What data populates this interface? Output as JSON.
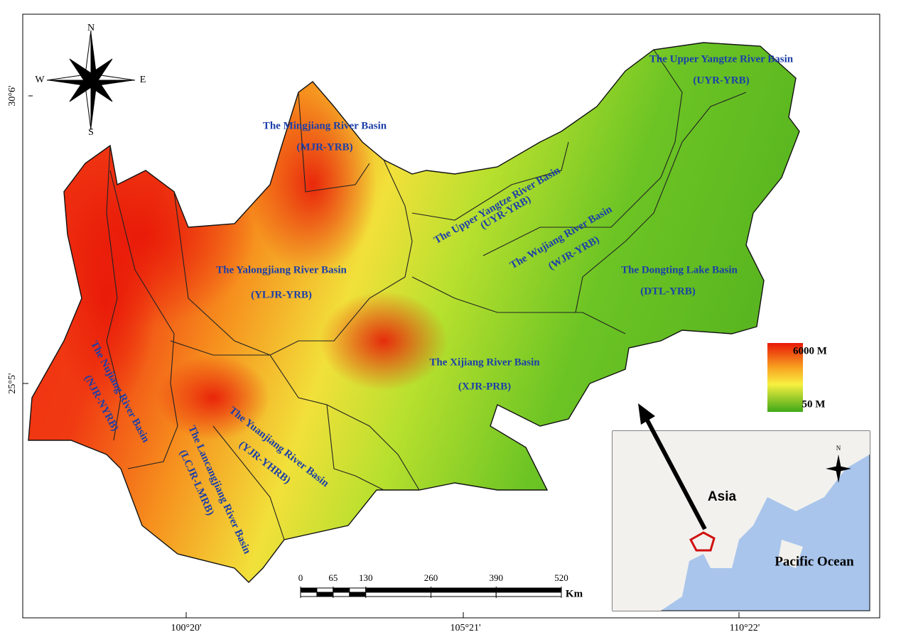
{
  "compass": {
    "n": "N",
    "s": "S",
    "e": "E",
    "w": "W"
  },
  "coordinates": {
    "left": [
      "30°6'",
      "25°5'"
    ],
    "bottom": [
      "100°20'",
      "105°21'",
      "110°22'"
    ]
  },
  "basins": [
    {
      "name": "The Upper Yangtze River Basin",
      "code": "(UYR-YRB)"
    },
    {
      "name": "The Mingjiang River Basin",
      "code": "(MJR-YRB)"
    },
    {
      "name": "The Upper Yangtze River Basin",
      "code": "(UYR-YRB)"
    },
    {
      "name": "The Wujiang River Basin",
      "code": "(WJR-YRB)"
    },
    {
      "name": "The Dongting Lake Basin",
      "code": "(DTL-YRB)"
    },
    {
      "name": "The Yalongjiang River Basin",
      "code": "(YLJR-YRB)"
    },
    {
      "name": "The Xijiang River Basin",
      "code": "(XJR-PRB)"
    },
    {
      "name": "The Nujiang River Basin",
      "code": "(NJR-NYRB)"
    },
    {
      "name": "The Lancangjiang River Basin",
      "code": "(LCJR-LMRB)"
    },
    {
      "name": "The Yuanjiang River Basin",
      "code": "(YJR-YHRB)"
    }
  ],
  "legend": {
    "high": "6000 M",
    "low": "50 M"
  },
  "scale_bar": {
    "ticks": [
      0,
      65,
      130,
      260,
      390,
      520
    ],
    "unit": "Km"
  },
  "inset": {
    "continent": "Asia",
    "ocean": "Pacific Ocean",
    "north": "N"
  }
}
